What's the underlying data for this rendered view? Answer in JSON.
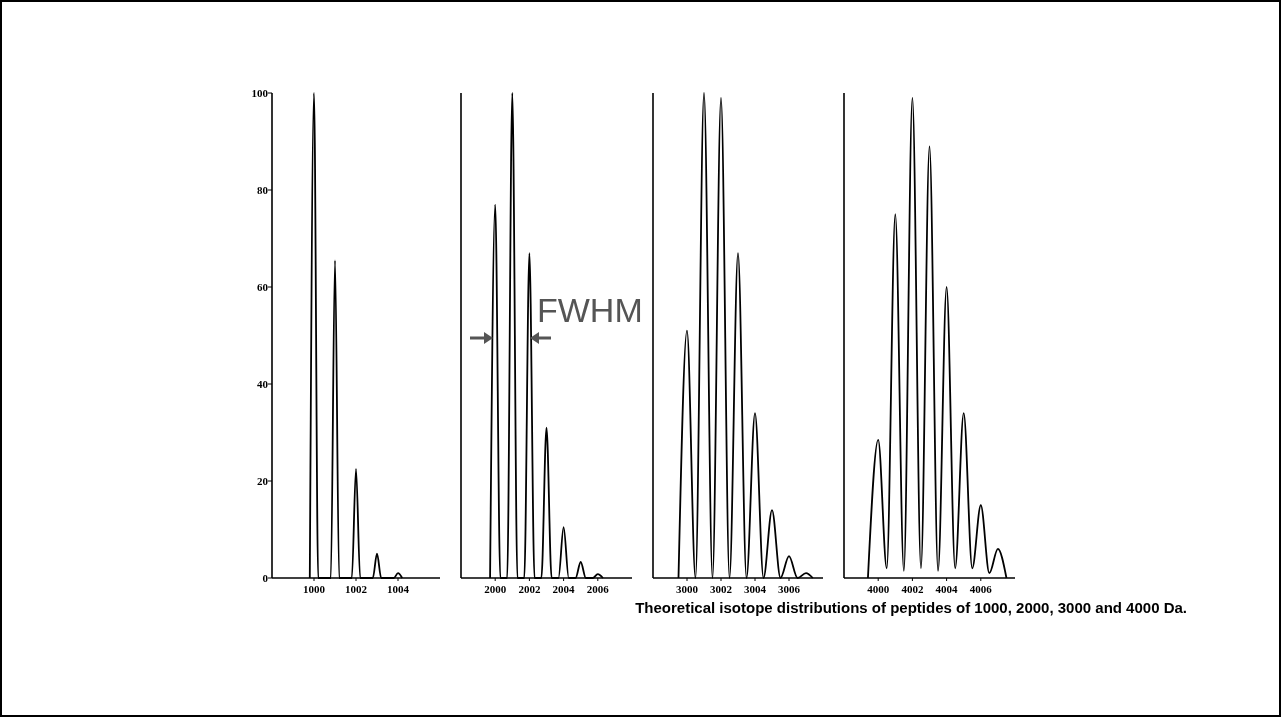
{
  "chart_data": [
    {
      "type": "line",
      "xlim": [
        998,
        1006
      ],
      "xticks": [
        1000,
        1002,
        1004
      ],
      "ylim": [
        0,
        100
      ],
      "yticks": [
        0,
        20,
        40,
        60,
        80,
        100
      ],
      "series": [
        {
          "color": "#000000",
          "x": [
            999.8,
            1000,
            1000.2,
            1000.8,
            1001,
            1001.2,
            1001.8,
            1002,
            1002.2,
            1002.8,
            1003,
            1003.2,
            1003.8,
            1004,
            1004.2
          ],
          "values": [
            0,
            100,
            0,
            0,
            65.5,
            0,
            0,
            22.5,
            0,
            0,
            5,
            0,
            0,
            1,
            0
          ]
        }
      ]
    },
    {
      "type": "line",
      "xlim": [
        1998,
        2008
      ],
      "xticks": [
        2000,
        2002,
        2004,
        2006
      ],
      "ylim": [
        0,
        100
      ],
      "tick_labels": "x",
      "annotations": [
        "FWHM"
      ],
      "series": [
        {
          "color": "#000000",
          "x": [
            1999.7,
            2000,
            2000.3,
            2000.7,
            2001,
            2001.3,
            2001.7,
            2002,
            2002.3,
            2002.7,
            2003,
            2003.3,
            2003.7,
            2004,
            2004.3,
            2004.7,
            2005,
            2005.3,
            2005.7,
            2006,
            2006.3
          ],
          "values": [
            0,
            77,
            0,
            0,
            100,
            0,
            0,
            67,
            0,
            0,
            31,
            0,
            0,
            10.5,
            0,
            0,
            3.3,
            0,
            0,
            0.8,
            0
          ]
        }
      ]
    },
    {
      "type": "line",
      "xlim": [
        2998,
        3008
      ],
      "xticks": [
        3000,
        3002,
        3004,
        3006
      ],
      "ylim": [
        0,
        100
      ],
      "tick_labels": "x",
      "series": [
        {
          "color": "#000000",
          "x": [
            2999.5,
            3000,
            3000.5,
            3001,
            3001.5,
            3002,
            3002.5,
            3003,
            3003.5,
            3004,
            3004.5,
            3005,
            3005.5,
            3006,
            3006.5,
            3007,
            3007.4
          ],
          "values": [
            0,
            51,
            0,
            100,
            0,
            99,
            0,
            67,
            0,
            34,
            0,
            14,
            0,
            4.5,
            0,
            1,
            0
          ]
        }
      ]
    },
    {
      "type": "line",
      "xlim": [
        3998,
        4008
      ],
      "xticks": [
        4000,
        4002,
        4004,
        4006
      ],
      "ylim": [
        0,
        100
      ],
      "tick_labels": "x",
      "annotations": [
        "Theoretical isotope distributions of peptides of 1000, 2000, 3000 and 4000 Da."
      ],
      "series": [
        {
          "color": "#000000",
          "x": [
            3999.4,
            4000,
            4000.5,
            4001,
            4001.5,
            4002,
            4002.5,
            4003,
            4003.5,
            4004,
            4004.5,
            4005,
            4005.5,
            4006,
            4006.5,
            4007,
            4007.5
          ],
          "values": [
            0,
            28.5,
            2,
            75,
            1.5,
            99,
            2,
            89,
            1.5,
            60,
            2,
            34,
            2,
            15,
            1,
            6,
            0
          ]
        }
      ]
    }
  ]
}
